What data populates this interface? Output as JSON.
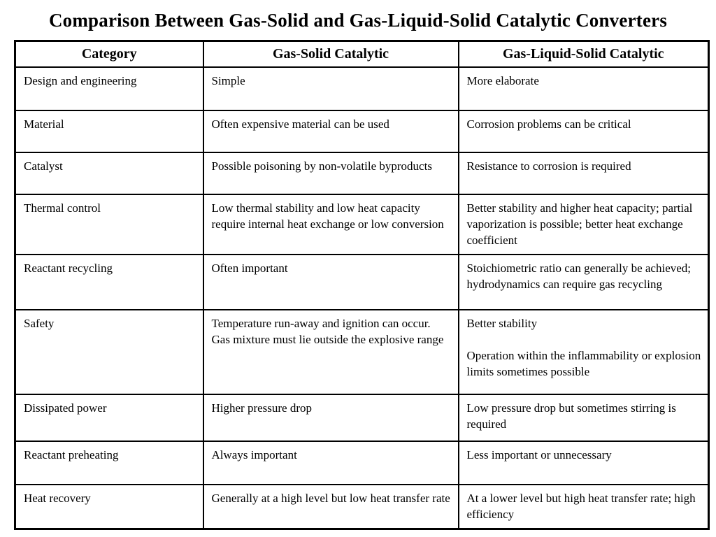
{
  "slide": {
    "title": "Comparison Between Gas-Solid and Gas-Liquid-Solid Catalytic Converters"
  },
  "table": {
    "headers": [
      "Category",
      "Gas-Solid Catalytic",
      "Gas-Liquid-Solid Catalytic"
    ],
    "rows": [
      {
        "category": "Design and engineering",
        "gas_solid": "Simple",
        "gas_liquid_solid": "More elaborate"
      },
      {
        "category": "Material",
        "gas_solid": "Often expensive material can be used",
        "gas_liquid_solid": "Corrosion problems can be critical"
      },
      {
        "category": "Catalyst",
        "gas_solid": "Possible poisoning by non-volatile byproducts",
        "gas_liquid_solid": "Resistance to corrosion is required"
      },
      {
        "category": "Thermal control",
        "gas_solid": "Low thermal stability and low heat capacity require internal heat exchange or low conversion",
        "gas_liquid_solid": "Better stability and higher heat capacity; partial vaporization is possible; better heat exchange coefficient"
      },
      {
        "category": "Reactant recycling",
        "gas_solid": "Often important",
        "gas_liquid_solid": "Stoichiometric ratio can generally be achieved; hydrodynamics can require gas recycling"
      },
      {
        "category": "Safety",
        "gas_solid": "Temperature run-away and ignition can occur.  Gas mixture must lie outside the explosive range",
        "gas_liquid_solid": "Better stability\n\nOperation within the inflammability or explosion limits sometimes possible"
      },
      {
        "category": "Dissipated power",
        "gas_solid": "Higher pressure drop",
        "gas_liquid_solid": "Low pressure drop but sometimes stirring is required"
      },
      {
        "category": "Reactant preheating",
        "gas_solid": "Always important",
        "gas_liquid_solid": "Less important or unnecessary"
      },
      {
        "category": "Heat recovery",
        "gas_solid": "Generally at a high level but low heat transfer rate",
        "gas_liquid_solid": "At a lower level but high heat transfer rate; high efficiency"
      }
    ]
  },
  "colors": {
    "background": "#ffffff",
    "text": "#000000",
    "border": "#000000"
  }
}
